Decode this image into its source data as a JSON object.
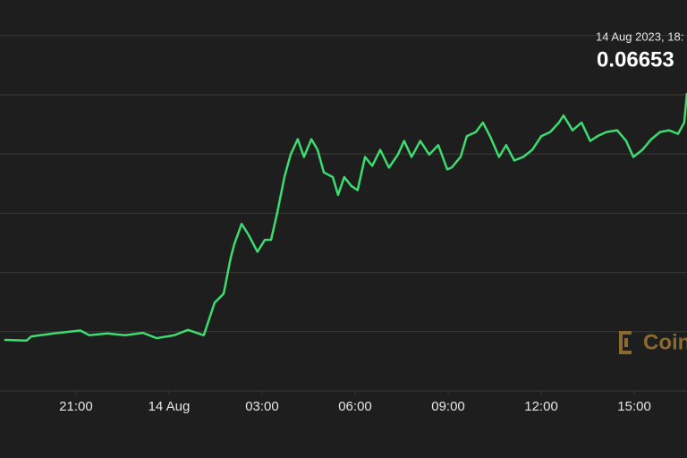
{
  "chart_data": {
    "type": "line",
    "price_time": "14 Aug 2023, 18:",
    "price": "0.06653",
    "watermark": "Coin",
    "color": "#3ddc6f",
    "x": [
      18.69,
      19.41,
      19.56,
      20.28,
      21.14,
      21.43,
      22.01,
      22.59,
      23.16,
      23.6,
      24.17,
      24.61,
      25.12,
      25.47,
      25.76,
      25.99,
      26.1,
      26.34,
      26.57,
      26.85,
      27.09,
      27.29,
      27.49,
      27.72,
      27.92,
      28.15,
      28.35,
      28.59,
      28.79,
      28.99,
      29.28,
      29.45,
      29.65,
      29.88,
      30.08,
      30.32,
      30.55,
      30.81,
      31.09,
      31.38,
      31.58,
      31.82,
      32.1,
      32.39,
      32.68,
      32.97,
      33.11,
      33.4,
      33.6,
      33.89,
      34.12,
      34.35,
      34.64,
      34.87,
      35.13,
      35.42,
      35.71,
      36.0,
      36.29,
      36.57,
      36.72,
      37.01,
      37.3,
      37.58,
      37.81,
      38.1,
      38.45,
      38.74,
      38.97,
      39.26,
      39.55,
      39.83,
      40.12,
      40.41,
      40.61,
      40.7
    ],
    "values": [
      0.06236,
      0.06235,
      0.06242,
      0.06247,
      0.06252,
      0.06244,
      0.06247,
      0.06244,
      0.06248,
      0.06239,
      0.06244,
      0.06253,
      0.06244,
      0.06299,
      0.06314,
      0.06375,
      0.06397,
      0.06432,
      0.06413,
      0.06385,
      0.06405,
      0.06405,
      0.06451,
      0.06511,
      0.06549,
      0.06575,
      0.06545,
      0.06575,
      0.06557,
      0.06519,
      0.06511,
      0.06481,
      0.06511,
      0.06496,
      0.06489,
      0.06545,
      0.0653,
      0.06557,
      0.06527,
      0.06549,
      0.06572,
      0.06545,
      0.06572,
      0.06549,
      0.06565,
      0.06524,
      0.06527,
      0.06545,
      0.0658,
      0.06587,
      0.06603,
      0.0658,
      0.06545,
      0.06565,
      0.06539,
      0.06545,
      0.06557,
      0.0658,
      0.06587,
      0.06603,
      0.06615,
      0.0659,
      0.06603,
      0.06572,
      0.0658,
      0.06587,
      0.0659,
      0.06572,
      0.06545,
      0.06557,
      0.06575,
      0.06587,
      0.0659,
      0.06584,
      0.06603,
      0.06653
    ],
    "xlim": [
      18.55,
      40.7
    ],
    "xticks": [
      {
        "value": 21,
        "label": "21:00"
      },
      {
        "value": 24,
        "label": "14 Aug"
      },
      {
        "value": 27,
        "label": "03:00"
      },
      {
        "value": 30,
        "label": "06:00"
      },
      {
        "value": 33,
        "label": "09:00"
      },
      {
        "value": 36,
        "label": "12:00"
      },
      {
        "value": 39,
        "label": "15:00"
      }
    ],
    "ylim": [
      0.0615,
      0.0681
    ],
    "yticks": [
      0.0615,
      0.0625,
      0.0635,
      0.0645,
      0.0655,
      0.0665,
      0.0675
    ],
    "grid": true
  }
}
